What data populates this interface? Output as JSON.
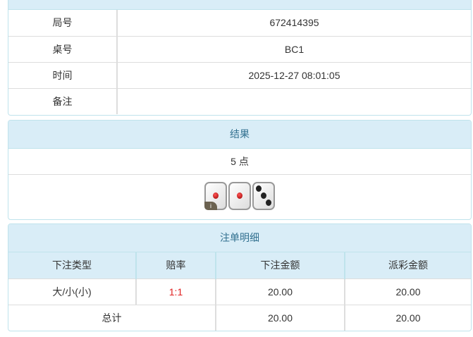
{
  "info": {
    "rows": [
      {
        "label": "局号",
        "value": "672414395"
      },
      {
        "label": "桌号",
        "value": "BC1"
      },
      {
        "label": "时间",
        "value": "2025-12-27 08:01:05"
      },
      {
        "label": "备注",
        "value": ""
      }
    ]
  },
  "result": {
    "title": "结果",
    "points": "5 点",
    "dice": [
      1,
      1,
      3
    ],
    "info_icon": "i"
  },
  "bets": {
    "title": "注单明细",
    "headers": [
      "下注类型",
      "赔率",
      "下注金额",
      "派彩金额"
    ],
    "rows": [
      {
        "type": "大/小(小)",
        "odds": "1:1",
        "amount": "20.00",
        "payout": "20.00"
      }
    ],
    "total": {
      "label": "总计",
      "amount": "20.00",
      "payout": "20.00"
    },
    "odds_color": "#e02020"
  }
}
